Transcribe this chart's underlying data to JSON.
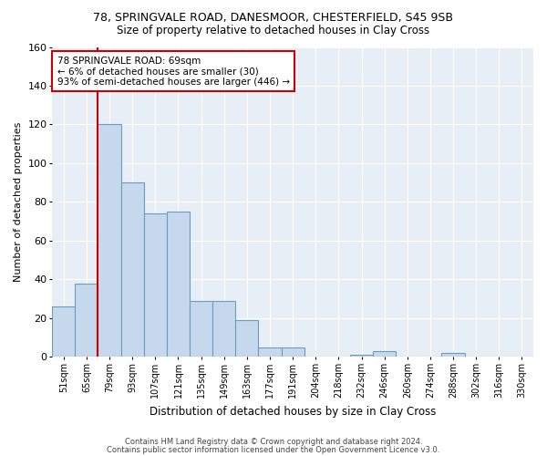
{
  "title1": "78, SPRINGVALE ROAD, DANESMOOR, CHESTERFIELD, S45 9SB",
  "title2": "Size of property relative to detached houses in Clay Cross",
  "xlabel": "Distribution of detached houses by size in Clay Cross",
  "ylabel": "Number of detached properties",
  "bar_color": "#c5d8ec",
  "bar_edge_color": "#6a9ec0",
  "background_color": "#e8eef5",
  "plot_bg_color": "#dce6f0",
  "grid_color": "#ffffff",
  "fig_bg_color": "#ffffff",
  "categories": [
    "51sqm",
    "65sqm",
    "79sqm",
    "93sqm",
    "107sqm",
    "121sqm",
    "135sqm",
    "149sqm",
    "163sqm",
    "177sqm",
    "191sqm",
    "204sqm",
    "218sqm",
    "232sqm",
    "246sqm",
    "260sqm",
    "274sqm",
    "288sqm",
    "302sqm",
    "316sqm",
    "330sqm"
  ],
  "values": [
    26,
    38,
    120,
    90,
    74,
    75,
    29,
    29,
    19,
    5,
    5,
    0,
    0,
    1,
    3,
    0,
    0,
    2,
    0,
    0,
    0
  ],
  "ylim": [
    0,
    160
  ],
  "yticks": [
    0,
    20,
    40,
    60,
    80,
    100,
    120,
    140,
    160
  ],
  "vline_color": "#cc0000",
  "vline_x": 1.5,
  "annotation_line1": "78 SPRINGVALE ROAD: 69sqm",
  "annotation_line2": "← 6% of detached houses are smaller (30)",
  "annotation_line3": "93% of semi-detached houses are larger (446) →",
  "annotation_box_color": "#ffffff",
  "annotation_box_edge": "#cc0000",
  "footer1": "Contains HM Land Registry data © Crown copyright and database right 2024.",
  "footer2": "Contains public sector information licensed under the Open Government Licence v3.0."
}
